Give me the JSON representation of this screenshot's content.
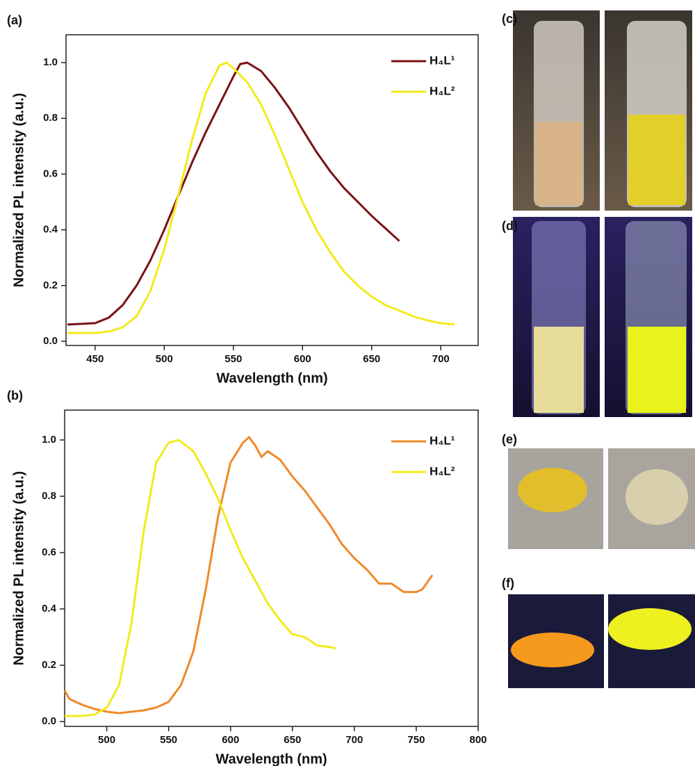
{
  "chart_data": [
    {
      "type": "line",
      "label": "(a)",
      "x_label": "Wavelength (nm)",
      "y_label": "Normalized  PL intensity (a.u.)",
      "xlim": [
        429,
        727
      ],
      "ylim": [
        -0.015,
        1.1
      ],
      "xticks": [
        450,
        500,
        550,
        600,
        650,
        700
      ],
      "yticks": [
        {
          "value": 0,
          "label": "0.0"
        },
        {
          "value": 0.2,
          "label": "0.2"
        },
        {
          "value": 0.4,
          "label": "0.4"
        },
        {
          "value": 0.6,
          "label": "0.6"
        },
        {
          "value": 0.8,
          "label": "0.8"
        },
        {
          "value": 1.0,
          "label": "1.0"
        }
      ],
      "legend": "upper right",
      "series": [
        {
          "name": "H₄L¹",
          "color": "#7a1216",
          "x": [
            430,
            450,
            460,
            470,
            480,
            490,
            500,
            510,
            520,
            530,
            540,
            550,
            555,
            560,
            570,
            580,
            590,
            600,
            610,
            620,
            630,
            640,
            650,
            660,
            670
          ],
          "values": [
            0.06,
            0.065,
            0.085,
            0.13,
            0.2,
            0.29,
            0.4,
            0.52,
            0.64,
            0.75,
            0.85,
            0.95,
            0.995,
            1.0,
            0.97,
            0.91,
            0.84,
            0.76,
            0.68,
            0.61,
            0.55,
            0.5,
            0.45,
            0.405,
            0.36
          ]
        },
        {
          "name": "H₄L²",
          "color": "#f3ea1c",
          "x": [
            430,
            450,
            460,
            470,
            480,
            490,
            500,
            510,
            520,
            530,
            540,
            545,
            550,
            560,
            570,
            580,
            590,
            600,
            610,
            620,
            630,
            640,
            650,
            660,
            670,
            680,
            690,
            700,
            710
          ],
          "values": [
            0.03,
            0.03,
            0.035,
            0.05,
            0.09,
            0.18,
            0.33,
            0.52,
            0.72,
            0.89,
            0.99,
            1.0,
            0.98,
            0.93,
            0.85,
            0.74,
            0.62,
            0.5,
            0.4,
            0.32,
            0.25,
            0.2,
            0.16,
            0.13,
            0.11,
            0.09,
            0.075,
            0.065,
            0.06
          ]
        }
      ]
    },
    {
      "type": "line",
      "label": "(b)",
      "x_label": "Wavelength (nm)",
      "y_label": "Normalized  PL intensity (a.u.)",
      "xlim": [
        466,
        800
      ],
      "ylim": [
        -0.017,
        1.106
      ],
      "xticks": [
        500,
        550,
        600,
        650,
        700,
        750,
        800
      ],
      "yticks": [
        {
          "value": 0,
          "label": "0.0"
        },
        {
          "value": 0.2,
          "label": "0.2"
        },
        {
          "value": 0.4,
          "label": "0.4"
        },
        {
          "value": 0.6,
          "label": "0.6"
        },
        {
          "value": 0.8,
          "label": "0.8"
        },
        {
          "value": 1.0,
          "label": "1.0"
        }
      ],
      "legend": "upper right",
      "series": [
        {
          "name": "H₄L¹",
          "color": "#f0892a",
          "x": [
            466,
            470,
            480,
            490,
            500,
            510,
            520,
            530,
            540,
            550,
            560,
            570,
            580,
            590,
            600,
            610,
            615,
            620,
            625,
            630,
            640,
            650,
            660,
            670,
            680,
            690,
            700,
            710,
            720,
            730,
            740,
            750,
            755,
            763
          ],
          "values": [
            0.11,
            0.08,
            0.06,
            0.045,
            0.035,
            0.03,
            0.035,
            0.04,
            0.05,
            0.07,
            0.13,
            0.25,
            0.47,
            0.73,
            0.92,
            0.99,
            1.01,
            0.98,
            0.94,
            0.96,
            0.93,
            0.87,
            0.82,
            0.76,
            0.7,
            0.63,
            0.58,
            0.54,
            0.49,
            0.49,
            0.46,
            0.46,
            0.47,
            0.52
          ]
        },
        {
          "name": "H₄L²",
          "color": "#f3ea1c",
          "x": [
            466,
            480,
            490,
            500,
            510,
            520,
            530,
            540,
            550,
            558,
            570,
            580,
            590,
            600,
            610,
            620,
            630,
            640,
            650,
            660,
            670,
            680,
            685
          ],
          "values": [
            0.02,
            0.02,
            0.025,
            0.05,
            0.13,
            0.35,
            0.68,
            0.92,
            0.99,
            1.0,
            0.96,
            0.88,
            0.79,
            0.68,
            0.58,
            0.5,
            0.42,
            0.36,
            0.31,
            0.3,
            0.27,
            0.265,
            0.26
          ]
        }
      ]
    }
  ],
  "photo_labels": [
    "(c)",
    "(d)",
    "(e)",
    "(f)"
  ]
}
